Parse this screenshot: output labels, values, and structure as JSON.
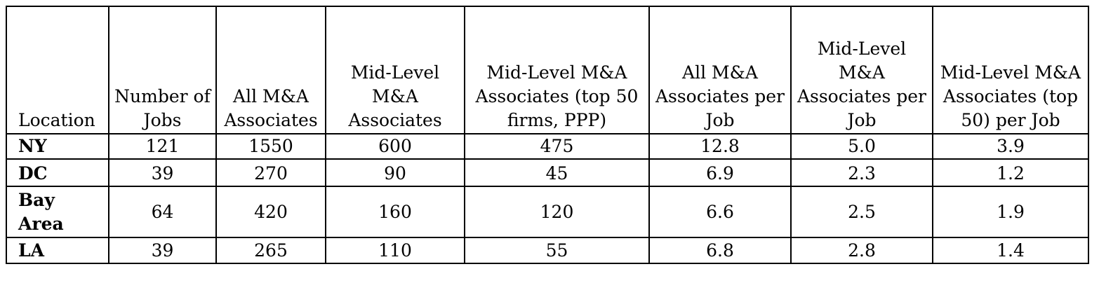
{
  "table": {
    "columns": [
      "Location",
      "Number of Jobs",
      "All M&A Associates",
      "Mid-Level M&A Associates",
      "Mid-Level M&A Associates (top 50 firms, PPP)",
      "All M&A Associates per Job",
      "Mid-Level M&A Associates per Job",
      "Mid-Level M&A Associates (top 50) per Job"
    ],
    "rows": [
      [
        "NY",
        "121",
        "1550",
        "600",
        "475",
        "12.8",
        "5.0",
        "3.9"
      ],
      [
        "DC",
        "39",
        "270",
        "90",
        "45",
        "6.9",
        "2.3",
        "1.2"
      ],
      [
        "Bay Area",
        "64",
        "420",
        "160",
        "120",
        "6.6",
        "2.5",
        "1.9"
      ],
      [
        "LA",
        "39",
        "265",
        "110",
        "55",
        "6.8",
        "2.8",
        "1.4"
      ]
    ]
  }
}
